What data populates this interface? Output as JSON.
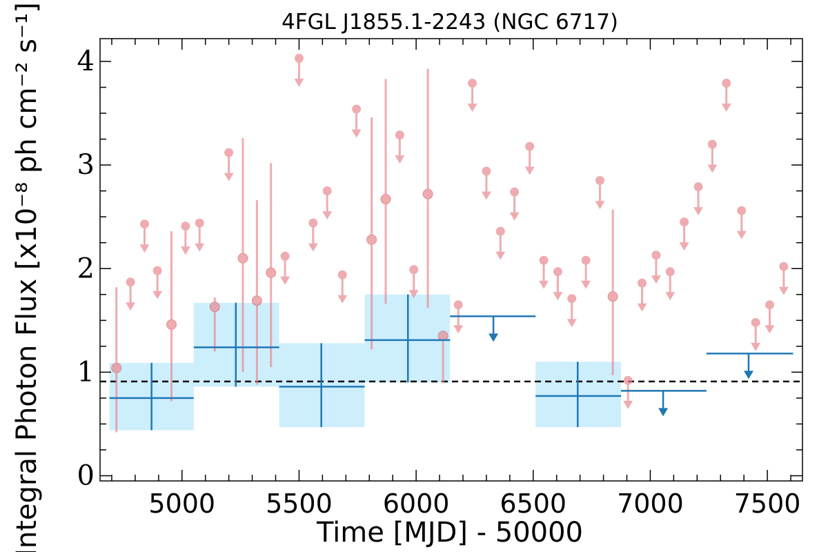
{
  "chart_data": {
    "type": "scatter",
    "title": "4FGL J1855.1-2243 (NGC 6717)",
    "xlabel": "Time [MJD] - 50000",
    "ylabel": "Integral Photon Flux [x10⁻⁸ ph cm⁻² s⁻¹]",
    "xlim": [
      4650,
      7650
    ],
    "ylim": [
      -0.05,
      4.22
    ],
    "xticks": [
      5000,
      5500,
      6000,
      6500,
      7000,
      7500
    ],
    "yticks": [
      0,
      1,
      2,
      3,
      4
    ],
    "reference_line_y": 0.91,
    "colors": {
      "fine_bins": "#e88a8f",
      "coarse_bins": "#1f77b4",
      "uncertainty_band": "#cdeefd",
      "reference_line": "#000000"
    },
    "fine_bins": {
      "detections": [
        {
          "x": 4720,
          "y": 1.04,
          "ylo": 0.42,
          "yhi": 1.82
        },
        {
          "x": 4955,
          "y": 1.46,
          "ylo": 0.72,
          "yhi": 2.36
        },
        {
          "x": 5140,
          "y": 1.63,
          "ylo": 1.2,
          "yhi": 1.72
        },
        {
          "x": 5260,
          "y": 2.1,
          "ylo": 1.0,
          "yhi": 3.26
        },
        {
          "x": 5320,
          "y": 1.69,
          "ylo": 0.88,
          "yhi": 2.66
        },
        {
          "x": 5380,
          "y": 1.96,
          "ylo": 1.05,
          "yhi": 3.02
        },
        {
          "x": 5810,
          "y": 2.28,
          "ylo": 1.22,
          "yhi": 3.46
        },
        {
          "x": 5870,
          "y": 2.67,
          "ylo": 1.66,
          "yhi": 3.83
        },
        {
          "x": 6050,
          "y": 2.72,
          "ylo": 1.62,
          "yhi": 3.93
        },
        {
          "x": 6115,
          "y": 1.35,
          "ylo": 0.9,
          "yhi": 1.4
        },
        {
          "x": 6840,
          "y": 1.73,
          "ylo": 0.97,
          "yhi": 2.57
        }
      ],
      "upper_limits": [
        {
          "x": 4780,
          "y": 1.87
        },
        {
          "x": 4840,
          "y": 2.43
        },
        {
          "x": 4895,
          "y": 1.98
        },
        {
          "x": 5015,
          "y": 2.41
        },
        {
          "x": 5075,
          "y": 2.44
        },
        {
          "x": 5200,
          "y": 3.12
        },
        {
          "x": 5440,
          "y": 2.12
        },
        {
          "x": 5500,
          "y": 4.03
        },
        {
          "x": 5560,
          "y": 2.44
        },
        {
          "x": 5620,
          "y": 2.75
        },
        {
          "x": 5685,
          "y": 1.94
        },
        {
          "x": 5745,
          "y": 3.54
        },
        {
          "x": 5930,
          "y": 3.29
        },
        {
          "x": 5990,
          "y": 1.99
        },
        {
          "x": 6180,
          "y": 1.65
        },
        {
          "x": 6240,
          "y": 3.79
        },
        {
          "x": 6300,
          "y": 2.94
        },
        {
          "x": 6360,
          "y": 2.36
        },
        {
          "x": 6420,
          "y": 2.74
        },
        {
          "x": 6485,
          "y": 3.18
        },
        {
          "x": 6545,
          "y": 2.08
        },
        {
          "x": 6605,
          "y": 1.97
        },
        {
          "x": 6665,
          "y": 1.71
        },
        {
          "x": 6725,
          "y": 2.08
        },
        {
          "x": 6785,
          "y": 2.85
        },
        {
          "x": 6905,
          "y": 0.92
        },
        {
          "x": 6965,
          "y": 1.86
        },
        {
          "x": 7025,
          "y": 2.13
        },
        {
          "x": 7085,
          "y": 1.97
        },
        {
          "x": 7145,
          "y": 2.45
        },
        {
          "x": 7205,
          "y": 2.79
        },
        {
          "x": 7265,
          "y": 3.2
        },
        {
          "x": 7325,
          "y": 3.79
        },
        {
          "x": 7390,
          "y": 2.56
        },
        {
          "x": 7450,
          "y": 1.48
        },
        {
          "x": 7510,
          "y": 1.65
        },
        {
          "x": 7570,
          "y": 2.02
        }
      ],
      "upper_limit_arrow_length": 0.27
    },
    "coarse_bins": {
      "detections": [
        {
          "x": 4870,
          "xlo": 4690,
          "xhi": 5050,
          "y": 0.75,
          "ylo": 0.44,
          "yhi": 1.09
        },
        {
          "x": 5230,
          "xlo": 5050,
          "xhi": 5415,
          "y": 1.24,
          "ylo": 0.86,
          "yhi": 1.67
        },
        {
          "x": 5595,
          "xlo": 5415,
          "xhi": 5780,
          "y": 0.86,
          "ylo": 0.47,
          "yhi": 1.28
        },
        {
          "x": 5965,
          "xlo": 5780,
          "xhi": 6145,
          "y": 1.31,
          "ylo": 0.9,
          "yhi": 1.75
        },
        {
          "x": 6690,
          "xlo": 6510,
          "xhi": 6875,
          "y": 0.77,
          "ylo": 0.47,
          "yhi": 1.1
        }
      ],
      "upper_limits": [
        {
          "x": 6330,
          "xlo": 6145,
          "xhi": 6510,
          "y": 1.54
        },
        {
          "x": 7055,
          "xlo": 6875,
          "xhi": 7240,
          "y": 0.82
        },
        {
          "x": 7420,
          "xlo": 7240,
          "xhi": 7610,
          "y": 1.18
        }
      ],
      "upper_limit_arrow_length": 0.24
    }
  }
}
